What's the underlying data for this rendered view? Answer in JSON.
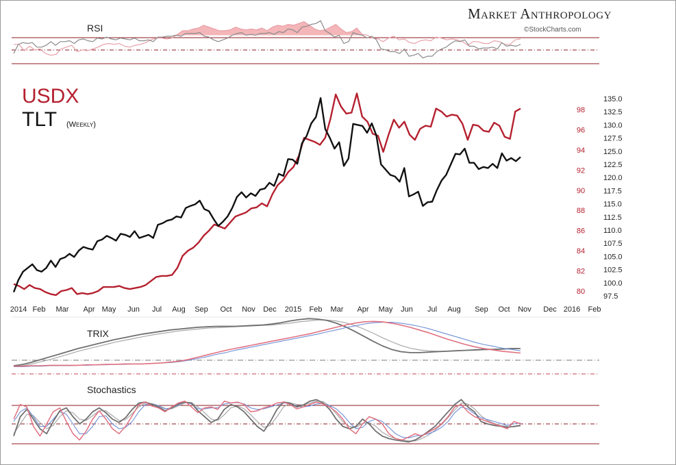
{
  "brand": {
    "name": "Market Anthropology",
    "credit": "©StockCharts.com"
  },
  "legend": {
    "usdx": "USDX",
    "tlt": "TLT",
    "period": "(Weekly)"
  },
  "colors": {
    "usdx": "#b5202f",
    "tlt": "#111111",
    "rsi_fill": "#f2a9ac",
    "blue": "#6f8fd6",
    "gray": "#8a8a8a"
  },
  "panels": {
    "rsi": "RSI",
    "trix": "TRIX",
    "stochastics": "Stochastics"
  },
  "chart_data": {
    "type": "line",
    "x_labels": [
      "2014",
      "Feb",
      "Mar",
      "Apr",
      "May",
      "Jun",
      "Jul",
      "Aug",
      "Sep",
      "Oct",
      "Nov",
      "Dec",
      "2015",
      "Feb",
      "Mar",
      "Apr",
      "May",
      "Jun",
      "Jul",
      "Aug",
      "Sep",
      "Oct",
      "Nov",
      "Dec",
      "2016",
      "Feb"
    ],
    "y_left_ticks": [
      "80",
      "82",
      "84",
      "86",
      "88",
      "90",
      "92",
      "94",
      "96",
      "98"
    ],
    "y_right_ticks": [
      "97.5",
      "100.0",
      "102.5",
      "105.0",
      "107.5",
      "110.0",
      "112.5",
      "115.0",
      "117.5",
      "120.0",
      "122.5",
      "125.0",
      "127.5",
      "130.0",
      "132.5",
      "135.0"
    ],
    "series": [
      {
        "name": "USDX",
        "axis": "left",
        "values": [
          80.7,
          80.5,
          80.2,
          80.6,
          80.3,
          80.2,
          79.9,
          79.7,
          79.6,
          80.0,
          80.1,
          80.3,
          79.7,
          79.8,
          79.7,
          79.8,
          80.0,
          80.4,
          80.4,
          80.4,
          80.5,
          80.3,
          80.2,
          80.3,
          80.4,
          80.6,
          81.0,
          81.4,
          81.5,
          81.5,
          81.6,
          82.3,
          83.5,
          84.0,
          84.3,
          84.8,
          85.5,
          86.0,
          86.6,
          86.4,
          86.2,
          86.8,
          87.4,
          87.6,
          87.8,
          88.2,
          88.3,
          88.7,
          88.4,
          89.6,
          90.5,
          91.0,
          91.8,
          92.3,
          93.4,
          95.2,
          95.0,
          94.8,
          94.5,
          95.2,
          97.1,
          99.5,
          98.3,
          97.6,
          97.7,
          99.6,
          97.3,
          96.8,
          95.6,
          95.4,
          93.8,
          95.5,
          97.0,
          96.2,
          96.8,
          95.5,
          95.0,
          96.1,
          96.4,
          96.3,
          98.1,
          97.8,
          97.3,
          97.5,
          97.4,
          96.6,
          95.0,
          96.5,
          96.4,
          95.9,
          95.8,
          96.7,
          96.4,
          95.3,
          95.1,
          97.8,
          98.1
        ]
      },
      {
        "name": "TLT",
        "axis": "right",
        "values": [
          98.2,
          100.5,
          102.1,
          102.8,
          103.5,
          102.4,
          102.1,
          102.8,
          104.2,
          103.0,
          104.5,
          104.8,
          105.5,
          104.9,
          106.1,
          106.8,
          106.5,
          106.3,
          107.9,
          108.2,
          108.9,
          108.5,
          108.0,
          109.3,
          109.1,
          108.7,
          109.8,
          108.5,
          108.8,
          109.1,
          108.5,
          111.0,
          111.3,
          111.8,
          112.0,
          112.6,
          112.4,
          114.2,
          114.6,
          114.9,
          115.6,
          114.0,
          113.6,
          112.1,
          110.8,
          111.6,
          112.6,
          114.2,
          116.3,
          117.2,
          116.2,
          117.0,
          116.5,
          117.7,
          117.9,
          119.0,
          118.4,
          120.7,
          120.3,
          123.5,
          123.4,
          122.6,
          126.5,
          127.9,
          130.3,
          131.5,
          135.1,
          129.2,
          127.5,
          125.5,
          126.7,
          122.2,
          123.6,
          130.2,
          130.0,
          129.8,
          128.5,
          130.3,
          128.0,
          122.5,
          121.5,
          120.5,
          120.2,
          119.2,
          121.8,
          116.4,
          116.8,
          117.3,
          114.6,
          115.3,
          115.4,
          117.6,
          119.4,
          120.5,
          122.5,
          124.5,
          124.4,
          125.5,
          122.8,
          122.8,
          121.6,
          122.0,
          121.8,
          122.6,
          121.8,
          124.6,
          123.2,
          123.7,
          123.1,
          123.9
        ]
      }
    ],
    "rsi": {
      "ref_lines": [
        "upper",
        "lower"
      ],
      "usdx": [
        55,
        55,
        48,
        53,
        49,
        50,
        45,
        43,
        44,
        50,
        52,
        54,
        47,
        49,
        48,
        50,
        52,
        55,
        56,
        55,
        56,
        53,
        52,
        54,
        55,
        57,
        60,
        62,
        62,
        61,
        62,
        66,
        70,
        70,
        72,
        73,
        76,
        74,
        72,
        70,
        70,
        71,
        74,
        72,
        71,
        72,
        71,
        73,
        70,
        74,
        76,
        75,
        77,
        76,
        78,
        80,
        76,
        72,
        70,
        71,
        74,
        77,
        72,
        68,
        69,
        73,
        66,
        65,
        62,
        61,
        58,
        62,
        64,
        60,
        61,
        57,
        56,
        59,
        60,
        59,
        63,
        62,
        60,
        61,
        60,
        58,
        54,
        58,
        58,
        56,
        56,
        59,
        58,
        55,
        55,
        60,
        61
      ],
      "tlt": [
        45,
        55,
        57,
        56,
        57,
        52,
        52,
        54,
        58,
        54,
        58,
        58,
        59,
        56,
        60,
        61,
        59,
        58,
        62,
        61,
        63,
        61,
        60,
        62,
        61,
        60,
        62,
        59,
        59,
        60,
        58,
        63,
        63,
        64,
        64,
        65,
        64,
        67,
        67,
        67,
        68,
        64,
        63,
        60,
        58,
        60,
        62,
        65,
        67,
        68,
        65,
        66,
        65,
        67,
        67,
        68,
        66,
        69,
        68,
        72,
        71,
        68,
        74,
        75,
        77,
        78,
        81,
        70,
        67,
        63,
        65,
        56,
        58,
        68,
        66,
        65,
        62,
        64,
        60,
        50,
        49,
        47,
        47,
        45,
        50,
        42,
        43,
        45,
        40,
        42,
        42,
        47,
        50,
        52,
        56,
        59,
        58,
        60,
        53,
        53,
        50,
        51,
        51,
        52,
        50,
        57,
        53,
        54,
        53,
        55
      ]
    },
    "trix": {
      "usdx": [
        -4.5,
        -4.5,
        -4.4,
        -4.4,
        -4.3,
        -4.3,
        -4.3,
        -4.3,
        -4.2,
        -4.2,
        -4.1,
        -4.1,
        -4.0,
        -4.0,
        -4.0,
        -3.9,
        -3.8,
        -3.6,
        -3.4,
        -3.0,
        -2.5,
        -2.0,
        -1.5,
        -1.0,
        -0.6,
        -0.2,
        0.2,
        0.6,
        1.0,
        1.4,
        1.8,
        2.2,
        2.6,
        3.1,
        3.6,
        4.1,
        4.6,
        5.0,
        5.3,
        5.4,
        5.3,
        5.0,
        4.6,
        4.1,
        3.5,
        2.9,
        2.2,
        1.5,
        0.9,
        0.3,
        -0.2,
        -0.6,
        -0.9,
        -1.2,
        -1.4,
        -1.6
      ],
      "usdx_signal": [
        -4.6,
        -4.6,
        -4.5,
        -4.5,
        -4.4,
        -4.4,
        -4.4,
        -4.3,
        -4.3,
        -4.2,
        -4.2,
        -4.1,
        -4.1,
        -4.0,
        -4.0,
        -3.9,
        -3.8,
        -3.7,
        -3.5,
        -3.2,
        -2.8,
        -2.4,
        -1.9,
        -1.5,
        -1.0,
        -0.6,
        -0.2,
        0.2,
        0.6,
        1.0,
        1.4,
        1.8,
        2.2,
        2.6,
        3.1,
        3.5,
        4.0,
        4.4,
        4.8,
        5.1,
        5.2,
        5.2,
        5.0,
        4.7,
        4.3,
        3.8,
        3.2,
        2.6,
        2.0,
        1.4,
        0.8,
        0.3,
        -0.1,
        -0.5,
        -0.8,
        -1.1
      ],
      "tlt": [
        -4.4,
        -4.1,
        -3.6,
        -3.0,
        -2.4,
        -1.8,
        -1.2,
        -0.6,
        -0.1,
        0.4,
        0.9,
        1.4,
        1.8,
        2.2,
        2.6,
        2.9,
        3.2,
        3.5,
        3.7,
        3.9,
        4.1,
        4.2,
        4.3,
        4.3,
        4.3,
        4.4,
        4.5,
        4.6,
        4.8,
        5.1,
        5.5,
        5.8,
        6.0,
        5.9,
        5.6,
        5.0,
        4.2,
        3.2,
        2.1,
        1.0,
        0.0,
        -0.8,
        -1.3,
        -1.5,
        -1.5,
        -1.4,
        -1.3,
        -1.2,
        -1.1,
        -1.0,
        -0.9,
        -0.8,
        -0.8,
        -0.7,
        -0.6,
        -0.6
      ],
      "tlt_signal": [
        -4.6,
        -4.4,
        -4.0,
        -3.5,
        -3.0,
        -2.4,
        -1.8,
        -1.2,
        -0.7,
        -0.2,
        0.3,
        0.8,
        1.2,
        1.6,
        2.0,
        2.4,
        2.7,
        3.0,
        3.3,
        3.5,
        3.7,
        3.9,
        4.0,
        4.1,
        4.2,
        4.3,
        4.4,
        4.5,
        4.6,
        4.8,
        5.0,
        5.3,
        5.5,
        5.7,
        5.7,
        5.5,
        5.1,
        4.5,
        3.7,
        2.8,
        1.8,
        0.9,
        0.1,
        -0.5,
        -0.9,
        -1.1,
        -1.2,
        -1.2,
        -1.1,
        -1.0,
        -1.0,
        -0.9,
        -0.8,
        -0.8,
        -0.7,
        -0.6
      ]
    },
    "stochastics": {
      "usdx": [
        55,
        85,
        80,
        40,
        20,
        45,
        70,
        78,
        50,
        25,
        12,
        30,
        55,
        72,
        55,
        35,
        25,
        40,
        62,
        85,
        90,
        82,
        78,
        70,
        80,
        88,
        92,
        80,
        68,
        78,
        80,
        75,
        92,
        88,
        90,
        85,
        70,
        72,
        78,
        82,
        88,
        90,
        85,
        76,
        80,
        85,
        90,
        86,
        80,
        70,
        55,
        35,
        25,
        45,
        60,
        55,
        45,
        25,
        15,
        12,
        18,
        25,
        20,
        28,
        35,
        45,
        60,
        80,
        85,
        70,
        60,
        55,
        50,
        45,
        40,
        35,
        50,
        45
      ],
      "usdx_signal": [
        50,
        70,
        78,
        60,
        40,
        40,
        55,
        70,
        65,
        45,
        25,
        25,
        40,
        60,
        62,
        45,
        35,
        38,
        50,
        70,
        85,
        86,
        82,
        76,
        78,
        84,
        90,
        86,
        76,
        76,
        78,
        78,
        86,
        88,
        89,
        86,
        78,
        75,
        76,
        80,
        84,
        88,
        87,
        82,
        80,
        82,
        86,
        87,
        83,
        76,
        64,
        48,
        35,
        38,
        50,
        55,
        50,
        38,
        25,
        18,
        16,
        20,
        22,
        25,
        30,
        38,
        50,
        68,
        80,
        76,
        66,
        58,
        54,
        50,
        46,
        42,
        45,
        47
      ],
      "tlt": [
        20,
        60,
        75,
        55,
        35,
        25,
        50,
        72,
        78,
        60,
        45,
        55,
        70,
        78,
        68,
        55,
        48,
        58,
        75,
        88,
        90,
        85,
        80,
        72,
        78,
        86,
        90,
        88,
        72,
        60,
        48,
        55,
        75,
        85,
        80,
        70,
        55,
        40,
        30,
        50,
        75,
        90,
        88,
        80,
        84,
        92,
        95,
        88,
        75,
        55,
        40,
        35,
        40,
        55,
        45,
        30,
        20,
        15,
        12,
        10,
        8,
        12,
        20,
        30,
        40,
        55,
        70,
        85,
        95,
        80,
        70,
        50,
        45,
        42,
        40,
        38,
        40,
        42
      ],
      "tlt_signal": [
        25,
        45,
        65,
        62,
        48,
        35,
        42,
        60,
        72,
        68,
        55,
        52,
        62,
        72,
        72,
        62,
        52,
        54,
        66,
        80,
        88,
        87,
        83,
        77,
        76,
        82,
        88,
        89,
        80,
        68,
        55,
        52,
        64,
        78,
        82,
        76,
        64,
        50,
        38,
        42,
        60,
        80,
        88,
        85,
        84,
        88,
        92,
        91,
        82,
        66,
        50,
        40,
        38,
        46,
        48,
        40,
        28,
        20,
        15,
        12,
        10,
        10,
        15,
        22,
        32,
        44,
        58,
        74,
        88,
        86,
        76,
        62,
        52,
        46,
        42,
        40,
        39,
        41
      ]
    }
  }
}
